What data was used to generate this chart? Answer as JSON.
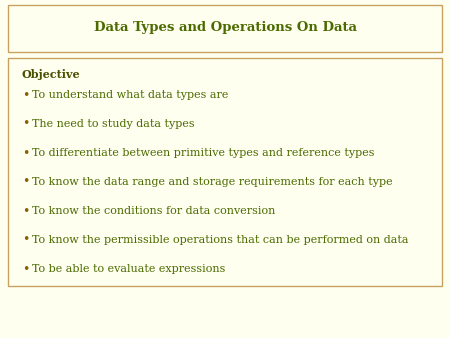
{
  "title": "Data Types and Operations On Data",
  "title_color": "#4B6B00",
  "title_fontsize": 9.5,
  "background_color": "#FFFFF0",
  "title_box_facecolor": "#FFFFF0",
  "title_box_edgecolor": "#C8A060",
  "content_box_facecolor": "#FFFFF0",
  "content_box_edgecolor": "#C8A060",
  "objective_label": "Objective",
  "objective_color": "#4B5000",
  "objective_fontsize": 8,
  "bullet_dot_color": "#8B6000",
  "bullet_text_color": "#4B6B00",
  "bullet_fontsize": 8,
  "bullets": [
    "To understand what data types are",
    "The need to study data types",
    "To differentiate between primitive types and reference types",
    "To know the data range and storage requirements for each type",
    "To know the conditions for data conversion",
    "To know the permissible operations that can be performed on data",
    "To be able to evaluate expressions"
  ],
  "fig_width": 4.5,
  "fig_height": 3.38,
  "dpi": 100
}
